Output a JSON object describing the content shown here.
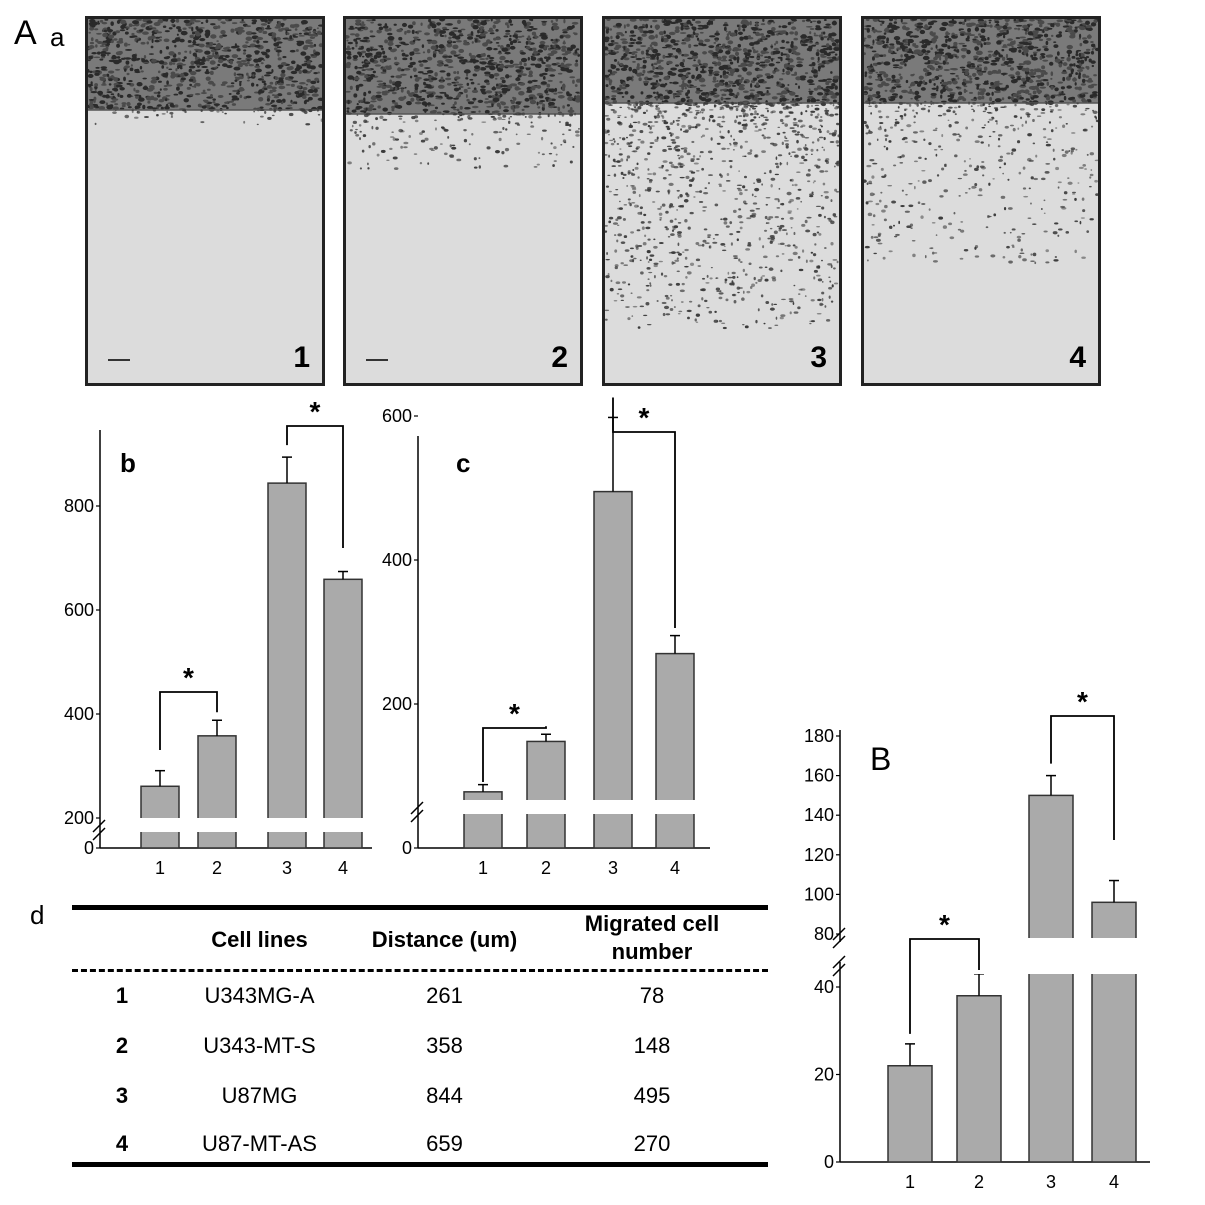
{
  "figure": {
    "panel_A_label": "A",
    "panel_A_sub": "a",
    "micrographs": [
      {
        "label": "1",
        "dense_fraction": 0.25,
        "spread": 0.04,
        "count": 40
      },
      {
        "label": "2",
        "dense_fraction": 0.26,
        "spread": 0.15,
        "count": 160
      },
      {
        "label": "3",
        "dense_fraction": 0.23,
        "spread": 0.62,
        "count": 1000
      },
      {
        "label": "4",
        "dense_fraction": 0.23,
        "spread": 0.44,
        "count": 420
      }
    ]
  },
  "chart_data": [
    {
      "id": "b",
      "type": "bar",
      "panel_label": "b",
      "categories": [
        "1",
        "2",
        "3",
        "4"
      ],
      "values": [
        261,
        358,
        844,
        659
      ],
      "errors": [
        30,
        30,
        50,
        15
      ],
      "y_ticks": [
        "0",
        "200",
        "400",
        "600",
        "800"
      ],
      "axis_break": true,
      "ylim": [
        0,
        900
      ],
      "significance": [
        {
          "between": [
            0,
            1
          ],
          "label": "*"
        },
        {
          "between": [
            2,
            3
          ],
          "label": "*"
        }
      ],
      "bar_color": "#aaaaaa"
    },
    {
      "id": "c",
      "type": "bar",
      "panel_label": "c",
      "categories": [
        "1",
        "2",
        "3",
        "4"
      ],
      "values": [
        78,
        148,
        495,
        270
      ],
      "errors": [
        10,
        10,
        103,
        25
      ],
      "y_ticks": [
        "0",
        "200",
        "400",
        "600"
      ],
      "axis_break": true,
      "ylim": [
        0,
        600
      ],
      "significance": [
        {
          "between": [
            0,
            1
          ],
          "label": "*"
        },
        {
          "between": [
            2,
            3
          ],
          "label": "*"
        }
      ],
      "bar_color": "#aaaaaa"
    },
    {
      "id": "B",
      "type": "bar",
      "panel_label": "B",
      "categories": [
        "1",
        "2",
        "3",
        "4"
      ],
      "values": [
        22,
        38,
        150,
        96
      ],
      "errors": [
        5,
        5,
        10,
        11
      ],
      "y_ticks_lower": [
        "0",
        "20",
        "40"
      ],
      "y_ticks_upper": [
        "80",
        "100",
        "120",
        "140",
        "160",
        "180"
      ],
      "axis_break": true,
      "lower_range": [
        0,
        45
      ],
      "upper_range": [
        80,
        180
      ],
      "significance": [
        {
          "between": [
            0,
            1
          ],
          "label": "*"
        },
        {
          "between": [
            2,
            3
          ],
          "label": "*"
        }
      ],
      "bar_color": "#aaaaaa"
    }
  ],
  "table": {
    "panel_label": "d",
    "headers": [
      "",
      "Cell lines",
      "Distance (um)",
      "Migrated cell number"
    ],
    "header_line1": "Migrated cell",
    "header_line2": "number",
    "rows": [
      {
        "idx": "1",
        "cell_line": "U343MG-A",
        "distance": "261",
        "migrated": "78"
      },
      {
        "idx": "2",
        "cell_line": "U343-MT-S",
        "distance": "358",
        "migrated": "148"
      },
      {
        "idx": "3",
        "cell_line": "U87MG",
        "distance": "844",
        "migrated": "495"
      },
      {
        "idx": "4",
        "cell_line": "U87-MT-AS",
        "distance": "659",
        "migrated": "270"
      }
    ]
  }
}
